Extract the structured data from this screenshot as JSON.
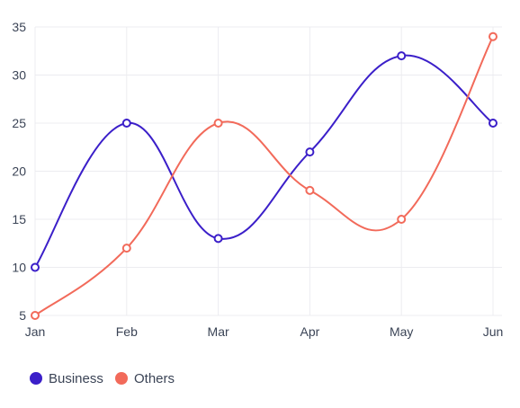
{
  "chart_data": {
    "type": "line",
    "smooth": true,
    "categories": [
      "Jan",
      "Feb",
      "Mar",
      "Apr",
      "May",
      "Jun"
    ],
    "ylim": [
      5,
      35
    ],
    "yticks": [
      5,
      10,
      15,
      20,
      25,
      30,
      35
    ],
    "grid": true,
    "legend_position": "bottom-left",
    "series": [
      {
        "name": "Business",
        "color": "#3b1fc9",
        "values": [
          10,
          25,
          13,
          22,
          32,
          25
        ]
      },
      {
        "name": "Others",
        "color": "#f26a5a",
        "values": [
          5,
          12,
          25,
          18,
          15,
          34
        ]
      }
    ]
  }
}
